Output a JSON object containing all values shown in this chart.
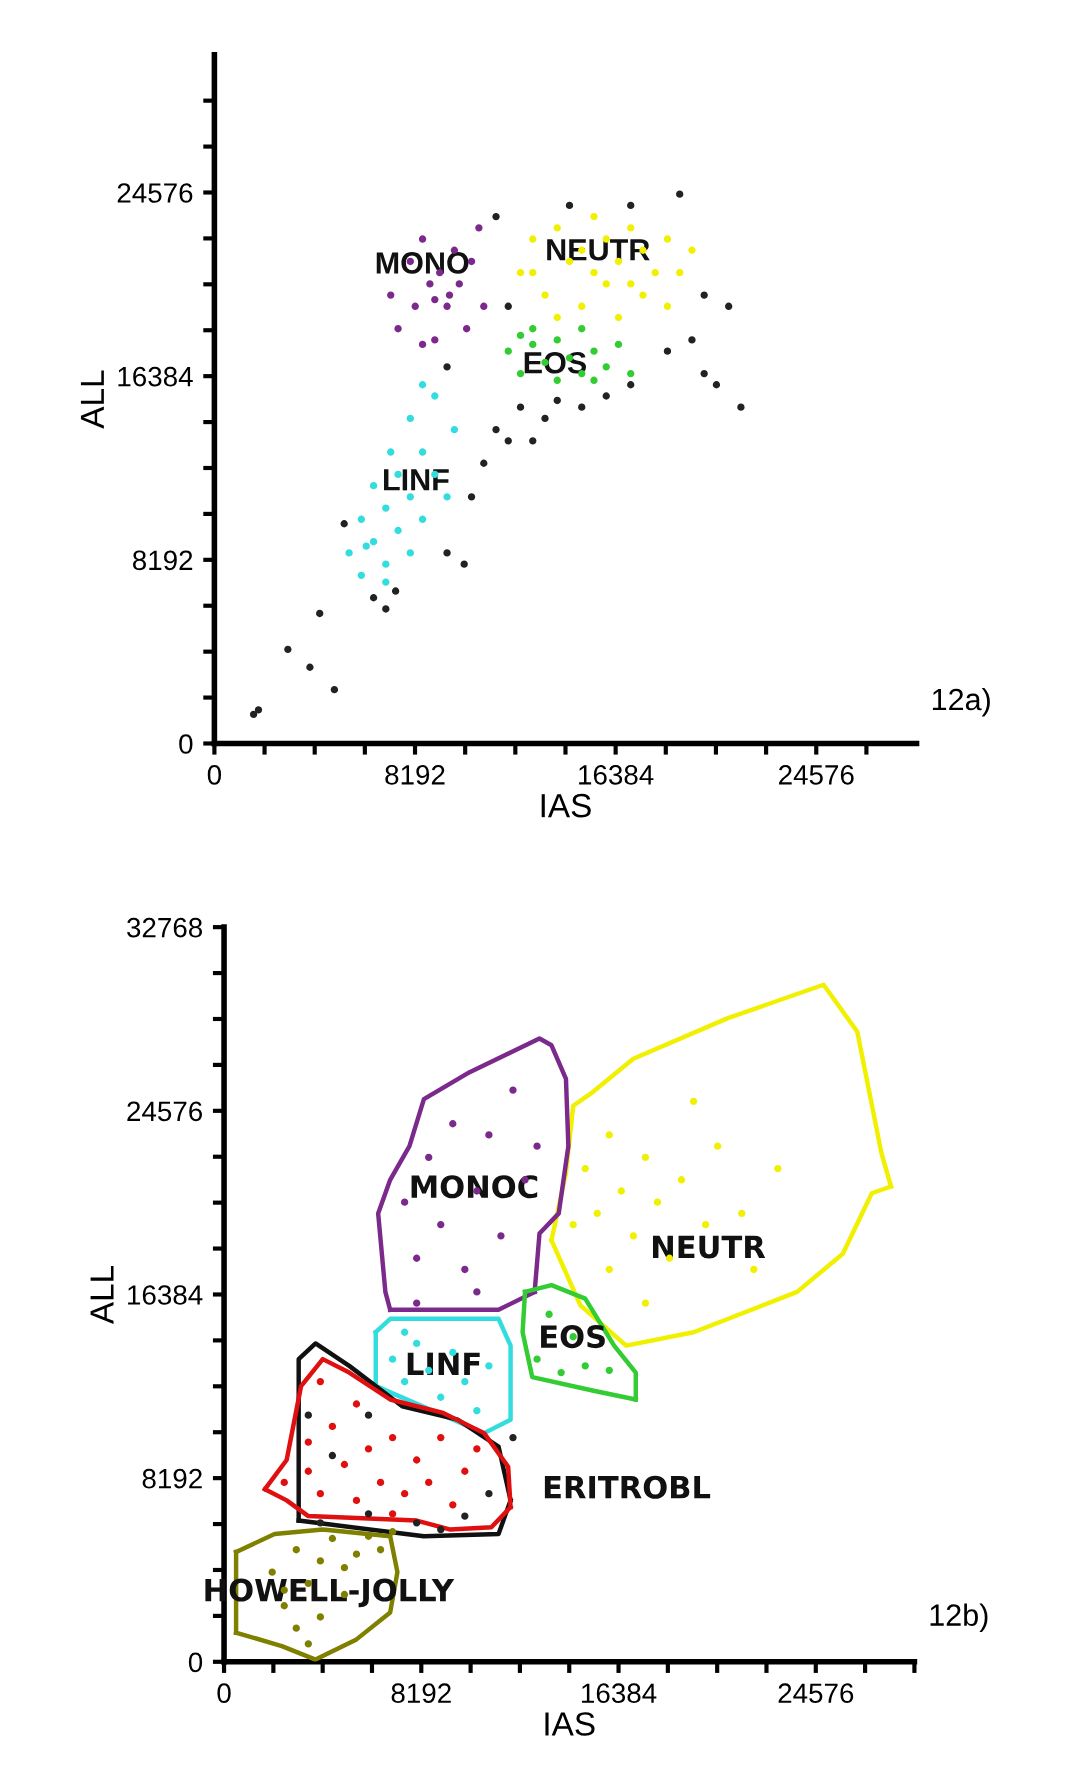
{
  "chart_data": [
    {
      "type": "scatter",
      "xlabel": "IAS",
      "ylabel": "ALL",
      "xlim": [
        0,
        28672
      ],
      "ylim": [
        0,
        30720
      ],
      "xticks": [
        0,
        {
          "value": 2048,
          "label": null
        },
        {
          "value": 4096,
          "label": null
        },
        {
          "value": 6144,
          "label": null
        },
        8192,
        {
          "value": 10240,
          "label": null
        },
        {
          "value": 12288,
          "label": null
        },
        {
          "value": 14336,
          "label": null
        },
        16384,
        {
          "value": 18432,
          "label": null
        },
        {
          "value": 20480,
          "label": null
        },
        {
          "value": 22528,
          "label": null
        },
        24576,
        {
          "value": 26624,
          "label": null
        }
      ],
      "yticks": [
        0,
        {
          "value": 2048,
          "label": null
        },
        {
          "value": 4096,
          "label": null
        },
        {
          "value": 6144,
          "label": null
        },
        8192,
        {
          "value": 10240,
          "label": null
        },
        {
          "value": 12288,
          "label": null
        },
        {
          "value": 14336,
          "label": null
        },
        16384,
        {
          "value": 18432,
          "label": null
        },
        {
          "value": 20480,
          "label": null
        },
        {
          "value": 22528,
          "label": null
        },
        24576,
        {
          "value": 26624,
          "label": null
        },
        {
          "value": 28672,
          "label": null
        }
      ],
      "grid": false,
      "legend": false,
      "marker": "circle",
      "series": [
        {
          "color": "#222222",
          "x": [
            1600,
            1800,
            3000,
            3900,
            4900,
            4300,
            5300,
            6500,
            7400,
            7000,
            9500,
            10200,
            10500,
            11000,
            11500,
            12000,
            12500,
            13000,
            13500,
            14000,
            15000,
            16000,
            17000,
            18500,
            19500,
            20000,
            21000,
            20500,
            19000,
            17000,
            14500,
            11500,
            20000,
            12000,
            9500,
            21500
          ],
          "values": [
            1300,
            1500,
            4200,
            3400,
            2400,
            5800,
            9800,
            6500,
            6800,
            6000,
            8500,
            8000,
            11000,
            12500,
            14000,
            13500,
            15000,
            13500,
            14500,
            15300,
            15000,
            15500,
            16000,
            17500,
            18000,
            16500,
            19500,
            16000,
            24500,
            24000,
            24000,
            23500,
            20000,
            19500,
            16800,
            15000
          ]
        },
        {
          "color": "#f0f000",
          "x": [
            12500,
            13000,
            13500,
            14000,
            14500,
            15000,
            15000,
            15500,
            16000,
            16000,
            16500,
            16500,
            17000,
            17500,
            17500,
            18000,
            18500,
            18500,
            19000,
            19500,
            14000,
            13000,
            15500,
            17000
          ],
          "values": [
            21000,
            22500,
            20000,
            23000,
            21500,
            19500,
            22000,
            23500,
            20500,
            22500,
            19000,
            21500,
            23000,
            20000,
            22000,
            21000,
            19500,
            22500,
            21000,
            22000,
            19000,
            21000,
            21000,
            20500
          ]
        },
        {
          "color": "#33cc33",
          "x": [
            12000,
            12500,
            13000,
            13500,
            14000,
            14000,
            14500,
            15000,
            15000,
            15500,
            16000,
            16500,
            17000,
            13000,
            15500,
            12500
          ],
          "values": [
            17500,
            16500,
            18500,
            17000,
            16200,
            18000,
            17200,
            16500,
            18500,
            17500,
            16800,
            17800,
            16500,
            17800,
            16200,
            18200
          ]
        },
        {
          "color": "#7b2a8c",
          "x": [
            7200,
            7500,
            8000,
            8200,
            8500,
            8800,
            9000,
            9200,
            9500,
            9800,
            10000,
            10300,
            10500,
            10800,
            11000,
            8500,
            9600,
            9000
          ],
          "values": [
            20000,
            18500,
            21500,
            19500,
            22500,
            20500,
            18000,
            21000,
            19500,
            22000,
            20500,
            18500,
            21500,
            23000,
            19500,
            17800,
            20000,
            19800
          ]
        },
        {
          "color": "#33dddd",
          "x": [
            5500,
            6000,
            6000,
            6500,
            6500,
            7000,
            7000,
            7200,
            7500,
            7500,
            8000,
            8000,
            8000,
            8500,
            8500,
            9000,
            9000,
            9500,
            9800,
            7000,
            8500,
            6200
          ],
          "values": [
            8500,
            7500,
            10000,
            9000,
            11500,
            8000,
            10500,
            13000,
            9500,
            12000,
            8500,
            11000,
            14500,
            10000,
            13000,
            12000,
            15500,
            11000,
            14000,
            7200,
            16000,
            8800
          ]
        }
      ],
      "annotations": [
        "MONO",
        "NEUTR",
        "EOS",
        "LINF",
        "12a)"
      ]
    },
    {
      "type": "scatter",
      "xlabel": "IAS",
      "ylabel": "ALL",
      "xlim": [
        0,
        28672
      ],
      "ylim": [
        0,
        32768
      ],
      "xticks": [
        0,
        {
          "value": 2048,
          "label": null
        },
        {
          "value": 4096,
          "label": null
        },
        {
          "value": 6144,
          "label": null
        },
        8192,
        {
          "value": 10240,
          "label": null
        },
        {
          "value": 12288,
          "label": null
        },
        {
          "value": 14336,
          "label": null
        },
        16384,
        {
          "value": 18432,
          "label": null
        },
        {
          "value": 20480,
          "label": null
        },
        {
          "value": 22528,
          "label": null
        },
        24576,
        {
          "value": 26624,
          "label": null
        },
        {
          "value": 28672,
          "label": null
        }
      ],
      "yticks": [
        0,
        {
          "value": 2048,
          "label": null
        },
        {
          "value": 4096,
          "label": null
        },
        {
          "value": 6144,
          "label": null
        },
        8192,
        {
          "value": 10240,
          "label": null
        },
        {
          "value": 12288,
          "label": null
        },
        {
          "value": 14336,
          "label": null
        },
        16384,
        {
          "value": 18432,
          "label": null
        },
        {
          "value": 20480,
          "label": null
        },
        {
          "value": 22528,
          "label": null
        },
        24576,
        {
          "value": 26624,
          "label": null
        },
        {
          "value": 28672,
          "label": null
        },
        {
          "value": 30720,
          "label": null
        },
        32768
      ],
      "grid": false,
      "legend": false,
      "marker": "circle",
      "series": [
        {
          "color": "#222222",
          "x": [
            3500,
            4500,
            6000,
            8000,
            9000,
            10000,
            11000,
            6000,
            4000,
            12000
          ],
          "values": [
            11000,
            9200,
            6600,
            6200,
            5900,
            6500,
            7500,
            11000,
            6200,
            10000
          ]
        },
        {
          "color": "#f0f000",
          "x": [
            15000,
            15500,
            16000,
            16500,
            17000,
            17500,
            18000,
            18500,
            19000,
            20000,
            20500,
            21500,
            22000,
            23000,
            16000,
            17500,
            14500,
            19500
          ],
          "values": [
            22000,
            20000,
            23500,
            21000,
            19000,
            22500,
            20500,
            18000,
            21500,
            19500,
            23000,
            20000,
            17500,
            22000,
            17500,
            16000,
            19500,
            25000
          ]
        },
        {
          "color": "#7b2a8c",
          "x": [
            7500,
            8000,
            8500,
            9000,
            9500,
            10000,
            10500,
            11000,
            11500,
            12000,
            12500,
            8000,
            10500,
            13000
          ],
          "values": [
            20500,
            18000,
            22500,
            19500,
            24000,
            17500,
            21000,
            23500,
            19000,
            25500,
            21500,
            16000,
            16500,
            23000
          ]
        },
        {
          "color": "#33dddd",
          "x": [
            7000,
            7500,
            8000,
            8500,
            9000,
            9500,
            10000,
            10500,
            11000,
            7500
          ],
          "values": [
            13500,
            12500,
            14200,
            13000,
            11800,
            13800,
            12500,
            11200,
            13200,
            14700
          ]
        },
        {
          "color": "#33cc33",
          "x": [
            13000,
            13500,
            14000,
            14500,
            15000,
            16000
          ],
          "values": [
            13500,
            15500,
            12900,
            14500,
            13200,
            13000
          ]
        },
        {
          "color": "#e01010",
          "x": [
            2500,
            3500,
            4000,
            4500,
            5000,
            5500,
            6000,
            6500,
            7000,
            7500,
            8000,
            8500,
            9000,
            9500,
            10000,
            10500,
            5500,
            4000,
            3500,
            7000
          ],
          "values": [
            8000,
            8500,
            7500,
            10500,
            8800,
            7200,
            9500,
            8000,
            10000,
            7500,
            9000,
            8000,
            10000,
            7000,
            8500,
            9500,
            11500,
            12500,
            9800,
            6600
          ]
        },
        {
          "color": "#808000",
          "x": [
            2000,
            2500,
            3000,
            3000,
            3500,
            4000,
            4000,
            4500,
            5000,
            5500,
            6000,
            6500,
            7000,
            3500,
            5000,
            2500
          ],
          "values": [
            4000,
            2500,
            5000,
            1500,
            3500,
            4500,
            2000,
            5500,
            3000,
            4800,
            5600,
            5000,
            5800,
            800,
            4200,
            3200
          ]
        },
        {
          "type": "line",
          "marker": "none",
          "color": "#f0f000",
          "x": [
            13600,
            14200,
            14500,
            15300,
            17000,
            20900,
            24900,
            26300,
            27300,
            27700
          ],
          "values": [
            18800,
            21800,
            24800,
            25400,
            26900,
            28700,
            30200,
            28100,
            22700,
            21200
          ]
        },
        {
          "type": "line",
          "marker": "none",
          "color": "#f0f000",
          "x": [
            13600,
            14800,
            16700,
            19500,
            23800,
            25700,
            26900,
            27700
          ],
          "values": [
            18800,
            15900,
            14100,
            14700,
            16500,
            18200,
            20900,
            21200
          ]
        },
        {
          "type": "line",
          "marker": "none",
          "color": "#7b2a8c",
          "x": [
            6900,
            11400,
            12900
          ],
          "values": [
            15700,
            15700,
            16500
          ]
        },
        {
          "type": "line",
          "marker": "none",
          "color": "#7b2a8c",
          "x": [
            12900,
            13100,
            13900,
            14300,
            14200,
            13600,
            13100,
            10200,
            8300,
            7700,
            6900,
            6400,
            6700,
            6900
          ],
          "values": [
            16500,
            19100,
            20000,
            23000,
            26000,
            27500,
            27800,
            26300,
            25100,
            23000,
            21500,
            20000,
            16500,
            15700
          ]
        },
        {
          "type": "line",
          "marker": "none",
          "color": "#33dddd",
          "x": [
            6300,
            6300
          ],
          "values": [
            12300,
            14700
          ]
        },
        {
          "type": "line",
          "marker": "none",
          "color": "#33dddd",
          "x": [
            6300,
            6900,
            11400,
            11900,
            11900,
            10800,
            6300
          ],
          "values": [
            14700,
            15300,
            15300,
            14100,
            10800,
            10200,
            12300
          ]
        },
        {
          "type": "line",
          "marker": "none",
          "color": "#33cc33",
          "x": [
            12500,
            13600,
            15000,
            16200,
            17100,
            17100
          ],
          "values": [
            16500,
            16800,
            16200,
            14100,
            12900,
            11700
          ]
        },
        {
          "type": "line",
          "marker": "none",
          "color": "#33cc33",
          "x": [
            17100,
            15300,
            12800,
            12400,
            12500
          ],
          "values": [
            11700,
            12100,
            12700,
            14700,
            16500
          ]
        },
        {
          "type": "line",
          "marker": "none",
          "color": "#111111",
          "x": [
            3100,
            3100,
            3800,
            5200,
            7400,
            9700,
            11400,
            11900
          ],
          "values": [
            6300,
            13500,
            14200,
            13200,
            11400,
            10800,
            9600,
            7200
          ]
        },
        {
          "type": "line",
          "marker": "none",
          "color": "#111111",
          "x": [
            3100,
            8300,
            11400,
            11900
          ],
          "values": [
            6300,
            5600,
            5700,
            7200
          ]
        },
        {
          "type": "line",
          "marker": "none",
          "color": "#e01010",
          "x": [
            1700,
            2600,
            3200,
            4100,
            5200,
            6900,
            9100,
            10800,
            11800,
            11900
          ],
          "values": [
            7700,
            9000,
            12300,
            13500,
            12900,
            11700,
            11100,
            10200,
            8700,
            6900
          ]
        },
        {
          "type": "line",
          "marker": "none",
          "color": "#e01010",
          "x": [
            1700,
            2600,
            3500,
            8000,
            9400,
            11100,
            11900
          ],
          "values": [
            7700,
            7200,
            6500,
            6300,
            5900,
            6000,
            6900
          ]
        },
        {
          "type": "line",
          "marker": "none",
          "color": "#808000",
          "x": [
            500,
            500
          ],
          "values": [
            1300,
            4900
          ]
        },
        {
          "type": "line",
          "marker": "none",
          "color": "#808000",
          "x": [
            500,
            2100,
            4100,
            6900,
            7200,
            6900,
            5500,
            3800,
            2400,
            500
          ],
          "values": [
            4900,
            5700,
            5900,
            5600,
            4000,
            2200,
            1000,
            100,
            700,
            1300
          ]
        }
      ],
      "annotations": [
        "MONOC",
        "NEUTR",
        "EOS",
        "LINF",
        "ERITROBL",
        "HOWELL-JOLLY",
        "12b)"
      ]
    }
  ]
}
